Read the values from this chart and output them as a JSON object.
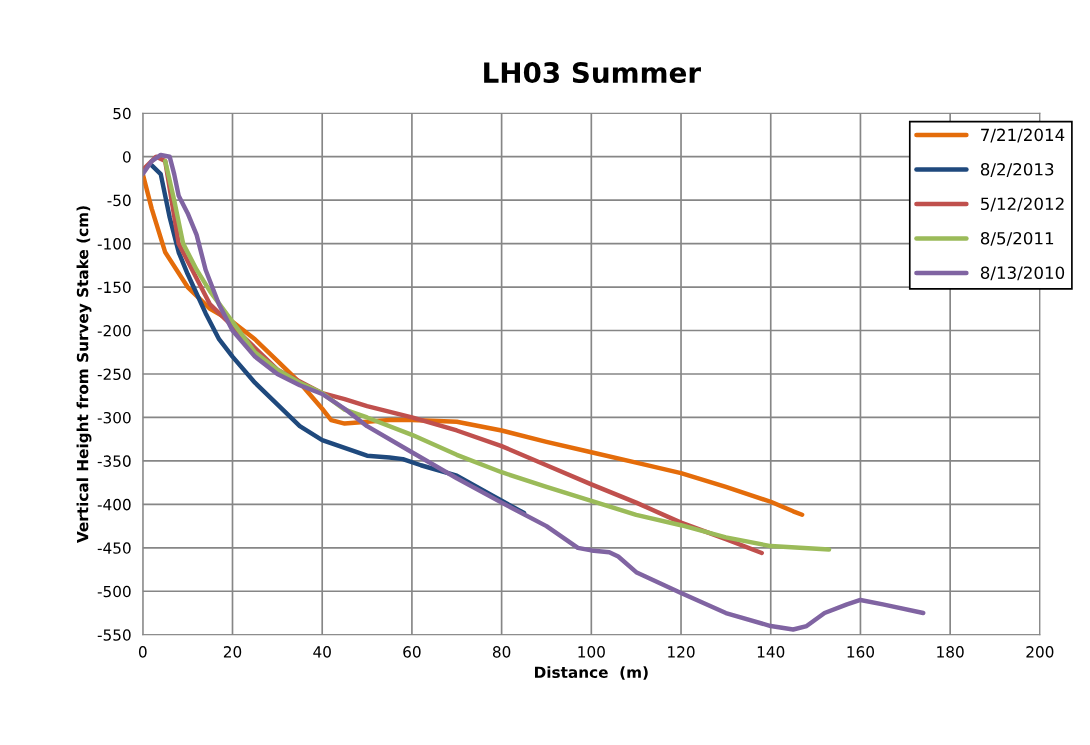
{
  "chart_data": {
    "type": "line",
    "title": "LH03 Summer",
    "xlabel": "Distance  (m)",
    "ylabel": "Vertical Height from Survey Stake (cm)",
    "xlim": [
      0,
      200
    ],
    "xticks": [
      0,
      20,
      40,
      60,
      80,
      100,
      120,
      140,
      160,
      180,
      200
    ],
    "ylim": [
      -550,
      50
    ],
    "yticks": [
      -550,
      -500,
      -450,
      -400,
      -350,
      -300,
      -250,
      -200,
      -150,
      -100,
      -50,
      0,
      50
    ],
    "grid": true,
    "legend": "top right",
    "marker": "none",
    "line_style": "solid",
    "series": [
      {
        "name": "7/21/2014",
        "color": "#e46c0a",
        "x": [
          0,
          2,
          5,
          10,
          15,
          20,
          25,
          30,
          35,
          40,
          42,
          45,
          50,
          55,
          60,
          70,
          80,
          90,
          100,
          110,
          120,
          130,
          140,
          145,
          147
        ],
        "values": [
          -20,
          -60,
          -110,
          -150,
          -175,
          -190,
          -210,
          -235,
          -260,
          -290,
          -303,
          -307,
          -305,
          -303,
          -303,
          -305,
          -315,
          -328,
          -340,
          -352,
          -364,
          -380,
          -397,
          -408,
          -412
        ]
      },
      {
        "name": "8/2/2013",
        "color": "#1f497d",
        "x": [
          2,
          4,
          6,
          8,
          10,
          14,
          17,
          20,
          25,
          30,
          35,
          40,
          45,
          50,
          55,
          58,
          62,
          70,
          78,
          85
        ],
        "values": [
          -10,
          -20,
          -70,
          -110,
          -135,
          -180,
          -210,
          -230,
          -260,
          -285,
          -310,
          -326,
          -335,
          -344,
          -346,
          -348,
          -355,
          -367,
          -390,
          -410
        ]
      },
      {
        "name": "5/12/2012",
        "color": "#c0504d",
        "x": [
          0,
          3,
          5,
          8,
          15,
          20,
          30,
          40,
          45,
          50,
          60,
          70,
          80,
          90,
          100,
          110,
          120,
          130,
          138
        ],
        "values": [
          -15,
          0,
          -5,
          -100,
          -170,
          -195,
          -245,
          -272,
          -279,
          -287,
          -300,
          -315,
          -333,
          -355,
          -377,
          -398,
          -421,
          -440,
          -456
        ]
      },
      {
        "name": "8/5/2011",
        "color": "#9bbb59",
        "x": [
          5,
          7,
          9,
          12,
          15,
          20,
          25,
          30,
          35,
          40,
          45,
          50,
          60,
          70,
          80,
          90,
          100,
          110,
          120,
          130,
          140,
          153
        ],
        "values": [
          -5,
          -50,
          -100,
          -130,
          -155,
          -190,
          -225,
          -245,
          -260,
          -272,
          -291,
          -300,
          -320,
          -343,
          -363,
          -380,
          -396,
          -412,
          -424,
          -438,
          -448,
          -452
        ]
      },
      {
        "name": "8/13/2010",
        "color": "#8064a2",
        "x": [
          0,
          2,
          4,
          6,
          7,
          8,
          10,
          12,
          14,
          17,
          20,
          25,
          30,
          35,
          40,
          45,
          50,
          60,
          70,
          80,
          90,
          97,
          100,
          104,
          106,
          110,
          120,
          130,
          140,
          145,
          148,
          152,
          157,
          160,
          165,
          174
        ],
        "values": [
          -20,
          -5,
          2,
          0,
          -20,
          -45,
          -65,
          -90,
          -130,
          -170,
          -200,
          -230,
          -250,
          -263,
          -273,
          -290,
          -310,
          -340,
          -370,
          -398,
          -425,
          -450,
          -453,
          -455,
          -460,
          -478,
          -502,
          -525,
          -540,
          -544,
          -540,
          -525,
          -515,
          -510,
          -515,
          -525
        ]
      }
    ]
  }
}
